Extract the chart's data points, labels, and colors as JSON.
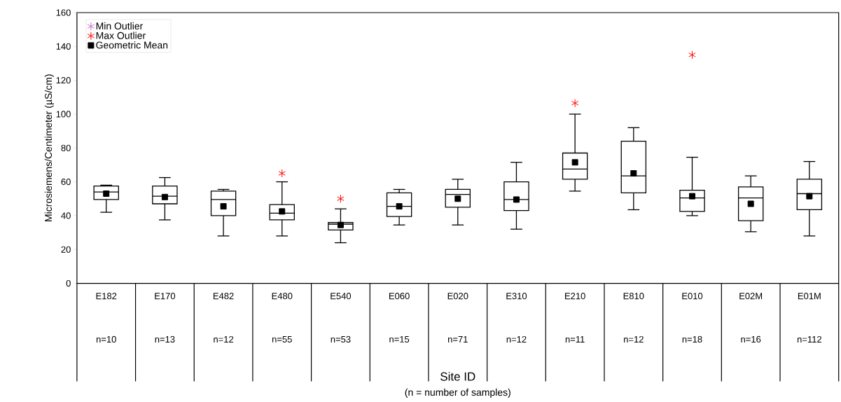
{
  "chart_data": {
    "type": "box",
    "categories": [
      "E182",
      "E170",
      "E482",
      "E480",
      "E540",
      "E060",
      "E020",
      "E310",
      "E210",
      "E810",
      "E010",
      "E02M",
      "E01M"
    ],
    "boxes": [
      {
        "low": 42,
        "q1": 49.5,
        "median": 54,
        "q3": 57.5,
        "high": 58
      },
      {
        "low": 37.5,
        "q1": 47,
        "median": 51.5,
        "q3": 57.5,
        "high": 62.5
      },
      {
        "low": 28,
        "q1": 40,
        "median": 49.5,
        "q3": 54.5,
        "high": 55.5
      },
      {
        "low": 28,
        "q1": 37.5,
        "median": 41.5,
        "q3": 46.5,
        "high": 60
      },
      {
        "low": 24,
        "q1": 31.5,
        "median": 35,
        "q3": 36,
        "high": 44
      },
      {
        "low": 34.5,
        "q1": 39.5,
        "median": 45.5,
        "q3": 53.5,
        "high": 55.5
      },
      {
        "low": 34.5,
        "q1": 45,
        "median": 52.5,
        "q3": 55.5,
        "high": 61.5
      },
      {
        "low": 32,
        "q1": 43,
        "median": 49.5,
        "q3": 60,
        "high": 71.5
      },
      {
        "low": 54.5,
        "q1": 61.5,
        "median": 67.5,
        "q3": 77,
        "high": 100
      },
      {
        "low": 43.5,
        "q1": 53.5,
        "median": 63.5,
        "q3": 84,
        "high": 92
      },
      {
        "low": 40,
        "q1": 42.5,
        "median": 50.5,
        "q3": 55,
        "high": 74.5
      },
      {
        "low": 30.5,
        "q1": 37,
        "median": 50.5,
        "q3": 57,
        "high": 63.5
      },
      {
        "low": 28,
        "q1": 43.5,
        "median": 53,
        "q3": 61.5,
        "high": 72
      }
    ],
    "series": [
      {
        "name": "Min Outlier",
        "type": "scatter",
        "marker": "cross",
        "color": "#cc66cc",
        "x": [
          "E182",
          "E170",
          "E482",
          "E480",
          "E540",
          "E060",
          "E020",
          "E310",
          "E210",
          "E810",
          "E010",
          "E02M",
          "E01M"
        ],
        "values": [
          null,
          null,
          null,
          null,
          null,
          null,
          null,
          null,
          null,
          null,
          null,
          null,
          null
        ]
      },
      {
        "name": "Max Outlier",
        "type": "scatter",
        "marker": "cross",
        "color": "#ff0000",
        "x": [
          "E480",
          "E540",
          "E210",
          "E010"
        ],
        "values": [
          65,
          50,
          106.5,
          135
        ]
      },
      {
        "name": "Geometric Mean",
        "type": "scatter",
        "marker": "square",
        "color": "#000000",
        "x": [
          "E182",
          "E170",
          "E482",
          "E480",
          "E540",
          "E060",
          "E020",
          "E310",
          "E210",
          "E810",
          "E010",
          "E02M",
          "E01M"
        ],
        "values": [
          53,
          51,
          45.5,
          42.5,
          34.5,
          45.5,
          50,
          49.5,
          71.5,
          65,
          51.5,
          47,
          51.5
        ]
      }
    ],
    "ylim": [
      0,
      160
    ],
    "yticks": [
      0,
      20,
      40,
      60,
      80,
      100,
      120,
      140,
      160
    ],
    "ylabel": "Microsiemens/Centimeter (µS/cm)",
    "annotations": [
      "n=10",
      "n=13",
      "n=12",
      "n=55",
      "n=53",
      "n=15",
      "n=71",
      "n=12",
      "n=11",
      "n=12",
      "n=18",
      "n=16",
      "n=112",
      "Site ID",
      "(n = number of samples)"
    ],
    "legend": "top left",
    "grid": false
  }
}
